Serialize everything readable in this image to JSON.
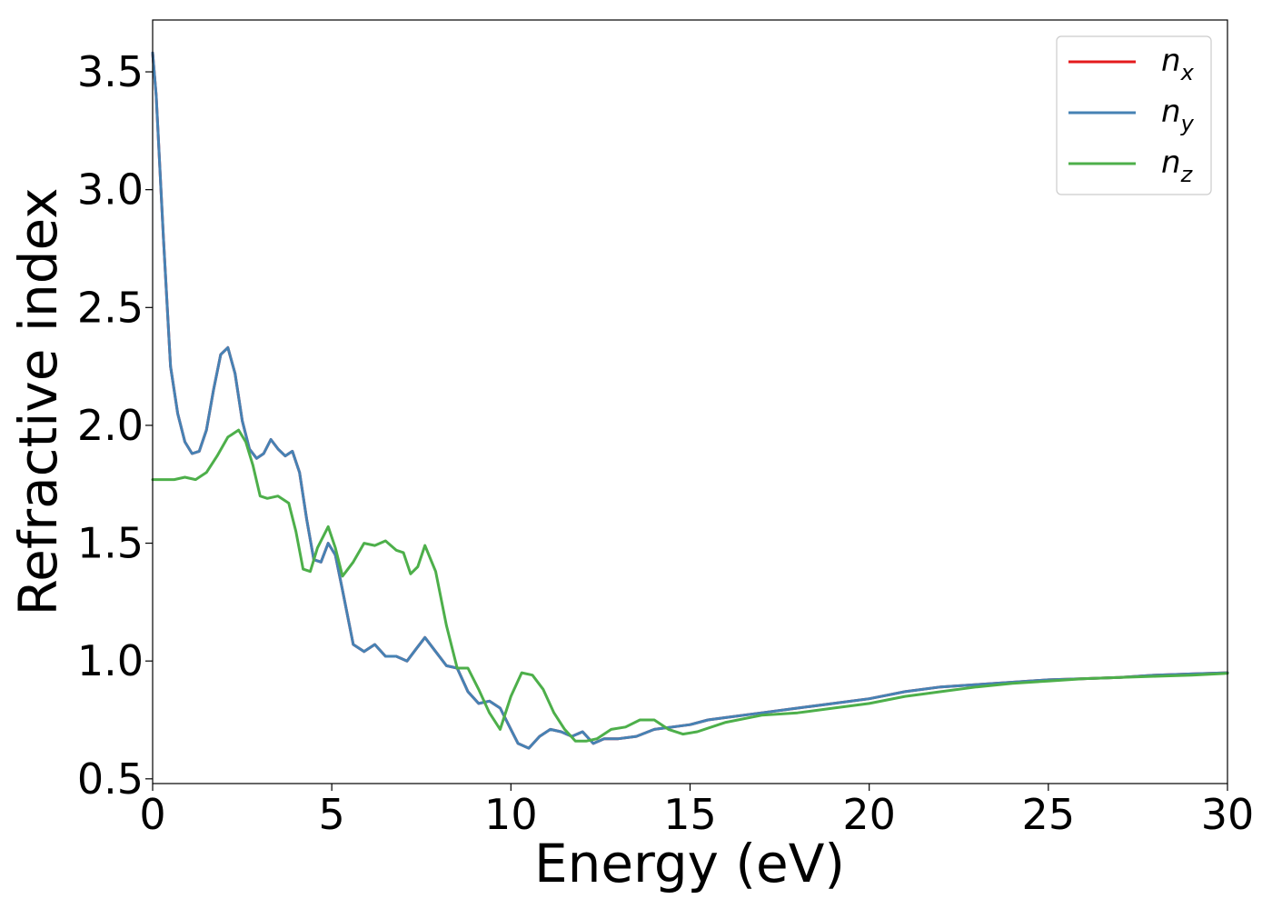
{
  "chart_data": {
    "type": "line",
    "title": "",
    "xlabel": "Energy (eV)",
    "ylabel": "Refractive index",
    "xlim": [
      0,
      30
    ],
    "ylim": [
      0.48,
      3.72
    ],
    "xticks": [
      0,
      5,
      10,
      15,
      20,
      25,
      30
    ],
    "yticks": [
      0.5,
      1.0,
      1.5,
      2.0,
      2.5,
      3.0,
      3.5
    ],
    "xtick_labels": [
      "0",
      "5",
      "10",
      "15",
      "20",
      "25",
      "30"
    ],
    "ytick_labels": [
      "0.5",
      "1.0",
      "1.5",
      "2.0",
      "2.5",
      "3.0",
      "3.5"
    ],
    "grid": false,
    "legend": "top-right",
    "series": [
      {
        "name": "n",
        "subscript": "x",
        "color": "#e41a1c",
        "x": [
          0,
          0.1,
          0.3,
          0.5,
          0.7,
          0.9,
          1.1,
          1.3,
          1.5,
          1.7,
          1.9,
          2.1,
          2.3,
          2.5,
          2.7,
          2.9,
          3.1,
          3.3,
          3.5,
          3.7,
          3.9,
          4.1,
          4.3,
          4.5,
          4.7,
          4.9,
          5.1,
          5.3,
          5.6,
          5.9,
          6.2,
          6.5,
          6.8,
          7.1,
          7.35,
          7.6,
          7.9,
          8.2,
          8.5,
          8.8,
          9.1,
          9.4,
          9.7,
          10.0,
          10.2,
          10.5,
          10.8,
          11.1,
          11.4,
          11.7,
          12.0,
          12.3,
          12.6,
          13.0,
          13.5,
          14.0,
          14.5,
          15.0,
          15.5,
          16.0,
          17.0,
          18.0,
          19.0,
          20.0,
          21.0,
          22.0,
          23.0,
          24.0,
          25.0,
          26.0,
          27.0,
          28.0,
          29.0,
          30.0
        ],
        "y": [
          3.58,
          3.4,
          2.8,
          2.25,
          2.05,
          1.93,
          1.88,
          1.89,
          1.98,
          2.15,
          2.3,
          2.33,
          2.22,
          2.02,
          1.9,
          1.86,
          1.88,
          1.94,
          1.9,
          1.87,
          1.89,
          1.8,
          1.6,
          1.43,
          1.42,
          1.5,
          1.45,
          1.3,
          1.07,
          1.04,
          1.07,
          1.02,
          1.02,
          1.0,
          1.05,
          1.1,
          1.04,
          0.98,
          0.97,
          0.87,
          0.82,
          0.83,
          0.8,
          0.71,
          0.65,
          0.63,
          0.68,
          0.71,
          0.7,
          0.68,
          0.7,
          0.65,
          0.67,
          0.67,
          0.68,
          0.71,
          0.72,
          0.73,
          0.75,
          0.76,
          0.78,
          0.8,
          0.82,
          0.84,
          0.87,
          0.89,
          0.9,
          0.91,
          0.92,
          0.925,
          0.93,
          0.94,
          0.945,
          0.95
        ]
      },
      {
        "name": "n",
        "subscript": "y",
        "color": "#4682b4",
        "x": [
          0,
          0.1,
          0.3,
          0.5,
          0.7,
          0.9,
          1.1,
          1.3,
          1.5,
          1.7,
          1.9,
          2.1,
          2.3,
          2.5,
          2.7,
          2.9,
          3.1,
          3.3,
          3.5,
          3.7,
          3.9,
          4.1,
          4.3,
          4.5,
          4.7,
          4.9,
          5.1,
          5.3,
          5.6,
          5.9,
          6.2,
          6.5,
          6.8,
          7.1,
          7.35,
          7.6,
          7.9,
          8.2,
          8.5,
          8.8,
          9.1,
          9.4,
          9.7,
          10.0,
          10.2,
          10.5,
          10.8,
          11.1,
          11.4,
          11.7,
          12.0,
          12.3,
          12.6,
          13.0,
          13.5,
          14.0,
          14.5,
          15.0,
          15.5,
          16.0,
          17.0,
          18.0,
          19.0,
          20.0,
          21.0,
          22.0,
          23.0,
          24.0,
          25.0,
          26.0,
          27.0,
          28.0,
          29.0,
          30.0
        ],
        "y": [
          3.58,
          3.4,
          2.8,
          2.25,
          2.05,
          1.93,
          1.88,
          1.89,
          1.98,
          2.15,
          2.3,
          2.33,
          2.22,
          2.02,
          1.9,
          1.86,
          1.88,
          1.94,
          1.9,
          1.87,
          1.89,
          1.8,
          1.6,
          1.43,
          1.42,
          1.5,
          1.45,
          1.3,
          1.07,
          1.04,
          1.07,
          1.02,
          1.02,
          1.0,
          1.05,
          1.1,
          1.04,
          0.98,
          0.97,
          0.87,
          0.82,
          0.83,
          0.8,
          0.71,
          0.65,
          0.63,
          0.68,
          0.71,
          0.7,
          0.68,
          0.7,
          0.65,
          0.67,
          0.67,
          0.68,
          0.71,
          0.72,
          0.73,
          0.75,
          0.76,
          0.78,
          0.8,
          0.82,
          0.84,
          0.87,
          0.89,
          0.9,
          0.91,
          0.92,
          0.925,
          0.93,
          0.94,
          0.945,
          0.95
        ]
      },
      {
        "name": "n",
        "subscript": "z",
        "color": "#4daf4a",
        "x": [
          0,
          0.3,
          0.6,
          0.9,
          1.2,
          1.5,
          1.8,
          2.1,
          2.4,
          2.6,
          2.8,
          3.0,
          3.2,
          3.5,
          3.8,
          4.0,
          4.2,
          4.4,
          4.6,
          4.9,
          5.1,
          5.3,
          5.6,
          5.9,
          6.2,
          6.5,
          6.8,
          7.0,
          7.2,
          7.4,
          7.6,
          7.9,
          8.2,
          8.5,
          8.8,
          9.1,
          9.4,
          9.7,
          10.0,
          10.3,
          10.6,
          10.9,
          11.2,
          11.5,
          11.8,
          12.1,
          12.4,
          12.8,
          13.2,
          13.6,
          14.0,
          14.4,
          14.8,
          15.2,
          16.0,
          17.0,
          18.0,
          19.0,
          20.0,
          21.0,
          22.0,
          23.0,
          24.0,
          25.0,
          26.0,
          27.0,
          28.0,
          29.0,
          30.0
        ],
        "y": [
          1.77,
          1.77,
          1.77,
          1.78,
          1.77,
          1.8,
          1.87,
          1.95,
          1.98,
          1.93,
          1.83,
          1.7,
          1.69,
          1.7,
          1.67,
          1.55,
          1.39,
          1.38,
          1.48,
          1.57,
          1.48,
          1.36,
          1.42,
          1.5,
          1.49,
          1.51,
          1.47,
          1.46,
          1.37,
          1.4,
          1.49,
          1.38,
          1.15,
          0.97,
          0.97,
          0.88,
          0.78,
          0.71,
          0.85,
          0.95,
          0.94,
          0.88,
          0.78,
          0.71,
          0.66,
          0.66,
          0.67,
          0.71,
          0.72,
          0.75,
          0.75,
          0.71,
          0.69,
          0.7,
          0.74,
          0.77,
          0.78,
          0.8,
          0.82,
          0.85,
          0.87,
          0.89,
          0.905,
          0.915,
          0.925,
          0.93,
          0.935,
          0.94,
          0.948
        ]
      }
    ]
  }
}
